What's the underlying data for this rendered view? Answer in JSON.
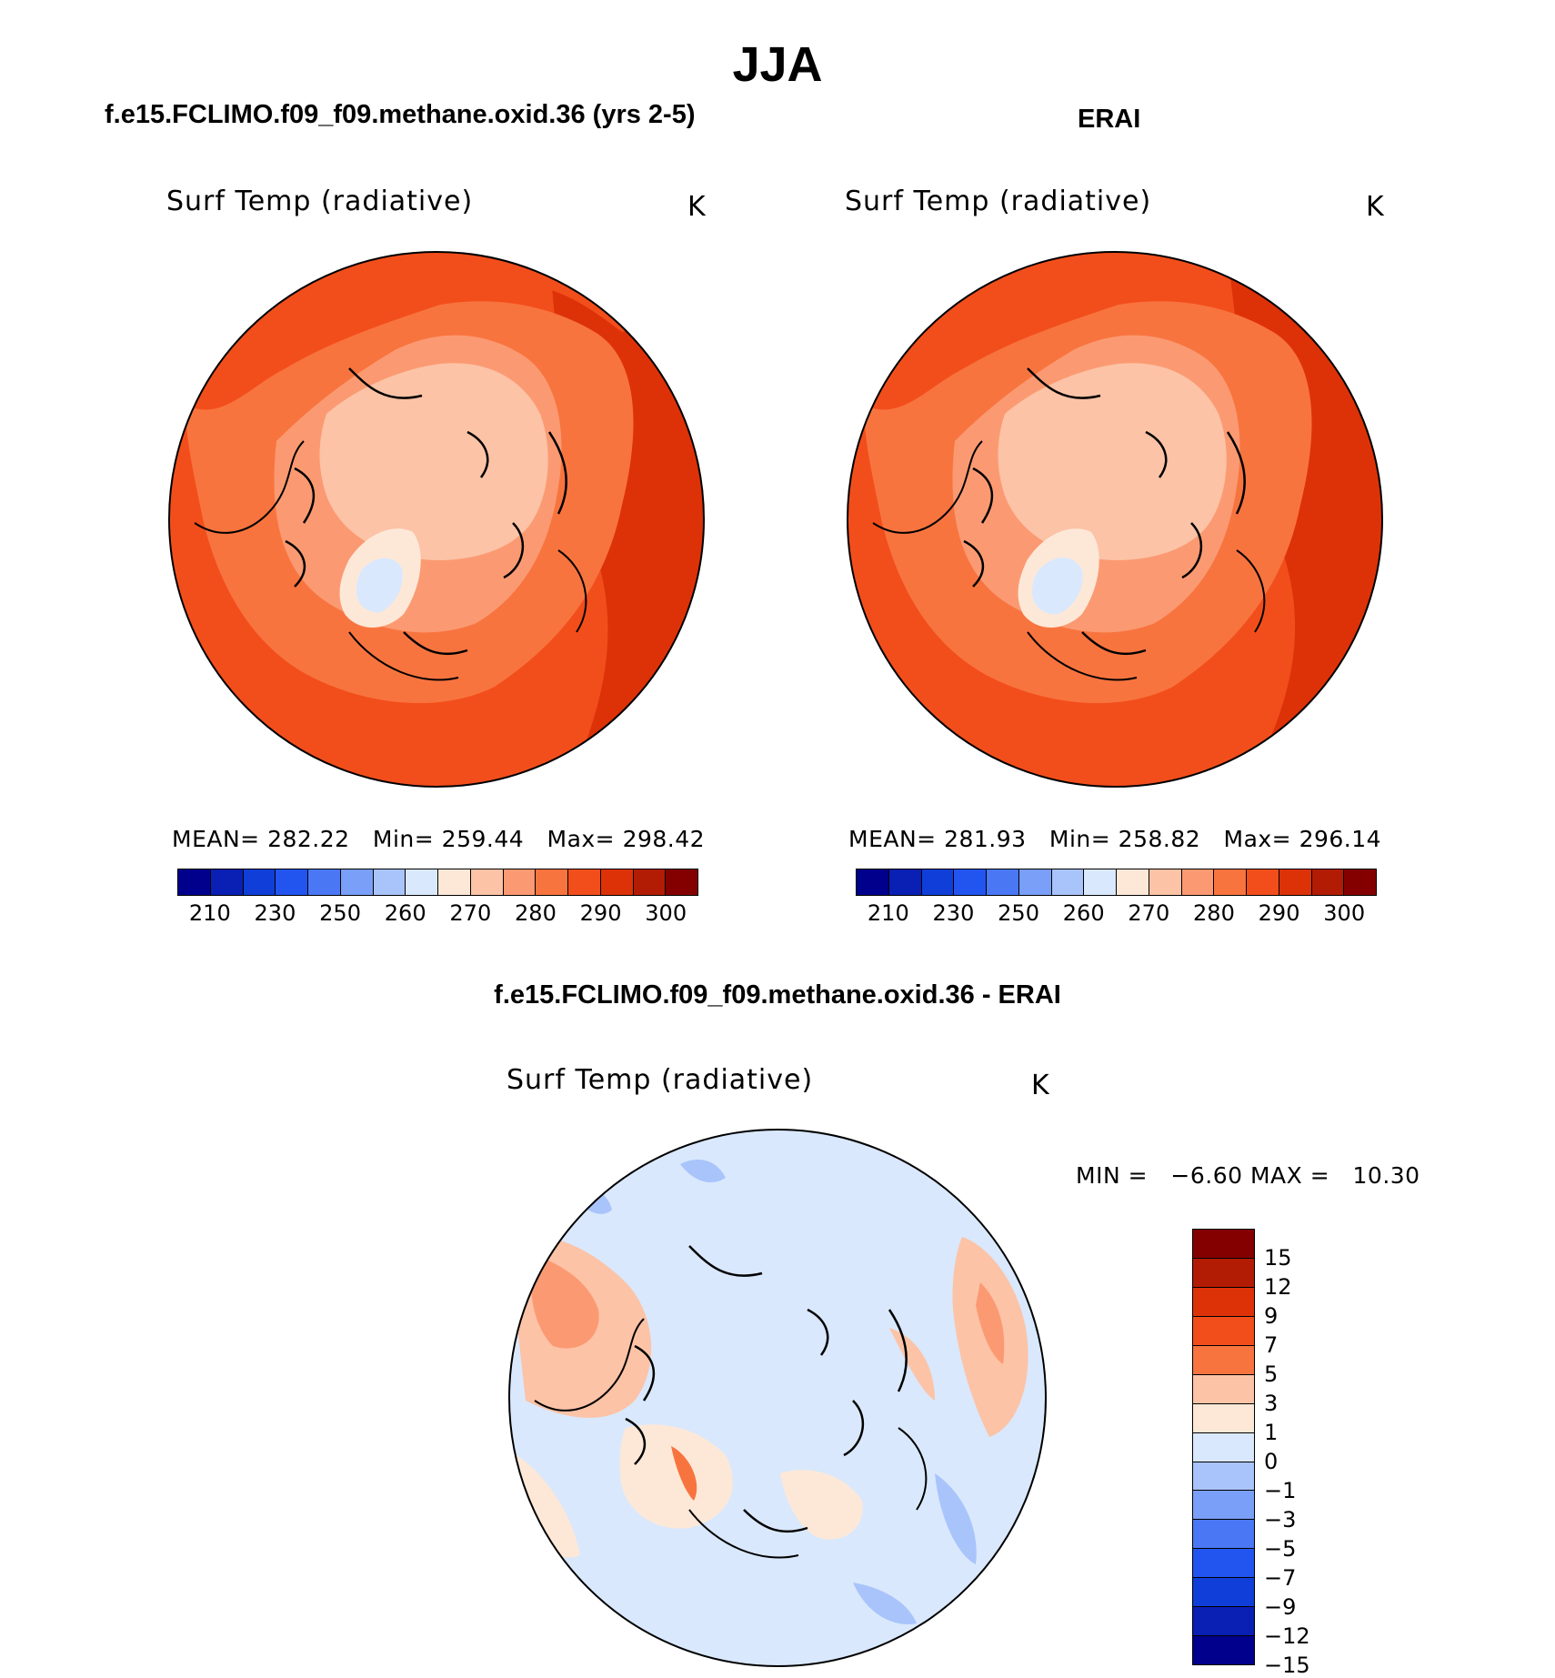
{
  "figure": {
    "season": "JJA"
  },
  "panels": [
    {
      "title": "f.e15.FCLIMO.f09_f09.methane.oxid.36 (yrs 2-5)",
      "variable": "Surf Temp (radiative)",
      "units": "K",
      "stats": {
        "mean_label": "MEAN=",
        "mean": "282.22",
        "min_label": "Min=",
        "min": "259.44",
        "max_label": "Max=",
        "max": "298.42"
      }
    },
    {
      "title": "ERAI",
      "variable": "Surf Temp (radiative)",
      "units": "K",
      "stats": {
        "mean_label": "MEAN=",
        "mean": "281.93",
        "min_label": "Min=",
        "min": "258.82",
        "max_label": "Max=",
        "max": "296.14"
      }
    },
    {
      "title": "f.e15.FCLIMO.f09_f09.methane.oxid.36 - ERAI",
      "variable": "Surf Temp (radiative)",
      "units": "K",
      "stats": {
        "min_label": "MIN =",
        "min": "−6.60",
        "max_label": "MAX =",
        "max": "10.30"
      }
    }
  ],
  "colorbars": {
    "absolute": {
      "colors": [
        "#00008c",
        "#0a1fb4",
        "#0f3fd8",
        "#2255f0",
        "#4a78f5",
        "#7a9ff8",
        "#a9c4fb",
        "#d9e8fc",
        "#fde8d8",
        "#fcc3a6",
        "#fb9a72",
        "#f8743f",
        "#f24e1c",
        "#dd3208",
        "#b31c04",
        "#840000"
      ],
      "tick_labels": [
        "210",
        "230",
        "250",
        "260",
        "270",
        "280",
        "290",
        "300"
      ]
    },
    "difference": {
      "colors": [
        "#840000",
        "#b31c04",
        "#dd3208",
        "#f24e1c",
        "#f8743f",
        "#fcc3a6",
        "#fde8d8",
        "#d9e8fc",
        "#a9c4fb",
        "#7a9ff8",
        "#4a78f5",
        "#2255f0",
        "#0f3fd8",
        "#0a1fb4",
        "#00008c"
      ],
      "tick_labels": [
        "15",
        "12",
        "9",
        "7",
        "5",
        "3",
        "1",
        "0",
        "−1",
        "−3",
        "−5",
        "−7",
        "−9",
        "−12",
        "−15"
      ]
    }
  }
}
